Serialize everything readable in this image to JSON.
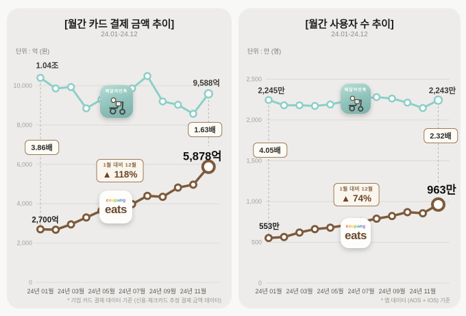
{
  "chart_data": [
    {
      "type": "line",
      "title": "[월간 카드 결제 금액 추이]",
      "subtitle": "24.01-24.12",
      "unit_label": "단위 : 억 (원)",
      "ylabel": "억 (원)",
      "ylim": [
        0,
        11000
      ],
      "grid": "horizontal",
      "y_ticks": [
        {
          "value": 0,
          "label": "0"
        },
        {
          "value": 2000,
          "label": "2,000"
        },
        {
          "value": 4000,
          "label": "4,000"
        },
        {
          "value": 6000,
          "label": "6,000"
        },
        {
          "value": 8000,
          "label": "8,000"
        },
        {
          "value": 10000,
          "label": "10,000"
        }
      ],
      "x_tick_labels": [
        "24년 01월",
        "24년 03월",
        "24년 05월",
        "24년 07월",
        "24년 09월",
        "24년 11월"
      ],
      "x_tick_months": [
        0,
        2,
        4,
        6,
        8,
        10
      ],
      "series": [
        {
          "name": "배달의민족",
          "color": "#8ccfc7",
          "values": [
            10400,
            9860,
            9930,
            8850,
            9300,
            9600,
            9860,
            10490,
            9200,
            9030,
            8570,
            9588
          ],
          "start_label": "1.04조",
          "end_label": "9,588억"
        },
        {
          "name": "쿠팡이츠",
          "color": "#7d5a3c",
          "values": [
            2700,
            2680,
            2950,
            3300,
            3650,
            3800,
            3980,
            4400,
            4350,
            4820,
            4970,
            5878
          ],
          "start_label": "2,700억",
          "end_label": "5,878억"
        }
      ],
      "ratio_start": "3.86배",
      "ratio_end": "1.63배",
      "change_caption": "1월 대비 12월",
      "change_value": "▲ 118%",
      "footnote": "* 기업 카드 결제 데이터 기준 (신용·체크카드 추정 결제 금액 데이터)"
    },
    {
      "type": "line",
      "title": "[월간 사용자 수 추이]",
      "subtitle": "24.01-24.12",
      "unit_label": "단위 : 만 (명)",
      "ylabel": "만 (명)",
      "ylim": [
        0,
        2500
      ],
      "grid": "horizontal",
      "y_ticks": [
        {
          "value": 0,
          "label": "0"
        },
        {
          "value": 500,
          "label": "500"
        },
        {
          "value": 1000,
          "label": "1,000"
        },
        {
          "value": 1500,
          "label": "1,500"
        },
        {
          "value": 2000,
          "label": "2,000"
        },
        {
          "value": 2500,
          "label": "2,500"
        }
      ],
      "x_tick_labels": [
        "24년 01월",
        "24년 03월",
        "24년 05월",
        "24년 07월",
        "24년 09월",
        "24년 11월"
      ],
      "x_tick_months": [
        0,
        2,
        4,
        6,
        8,
        10
      ],
      "series": [
        {
          "name": "배달의민족",
          "color": "#8ccfc7",
          "values": [
            2245,
            2180,
            2180,
            2172,
            2190,
            2230,
            2260,
            2280,
            2263,
            2213,
            2146,
            2243
          ],
          "start_label": "2,245만",
          "end_label": "2,243만"
        },
        {
          "name": "쿠팡이츠",
          "color": "#7d5a3c",
          "values": [
            553,
            565,
            620,
            662,
            680,
            710,
            750,
            790,
            822,
            870,
            856,
            963
          ],
          "start_label": "553만",
          "end_label": "963만"
        }
      ],
      "ratio_start": "4.05배",
      "ratio_end": "2.32배",
      "change_caption": "1월 대비 12월",
      "change_value": "▲ 74%",
      "footnote": "* 앱 데이터 (AOS + IOS) 기준"
    }
  ],
  "icons": {
    "baemin": {
      "label": "배달의민족"
    },
    "coupang_eats": {
      "word": "coupang",
      "word2": "eats"
    }
  },
  "colors": {
    "teal": "#8ccfc7",
    "brown": "#7d5a3c",
    "gridline": "#dbdad7",
    "dashed": "#b3b1ae",
    "box_border": "#9a7a58",
    "panel_bg": "#edecea"
  }
}
